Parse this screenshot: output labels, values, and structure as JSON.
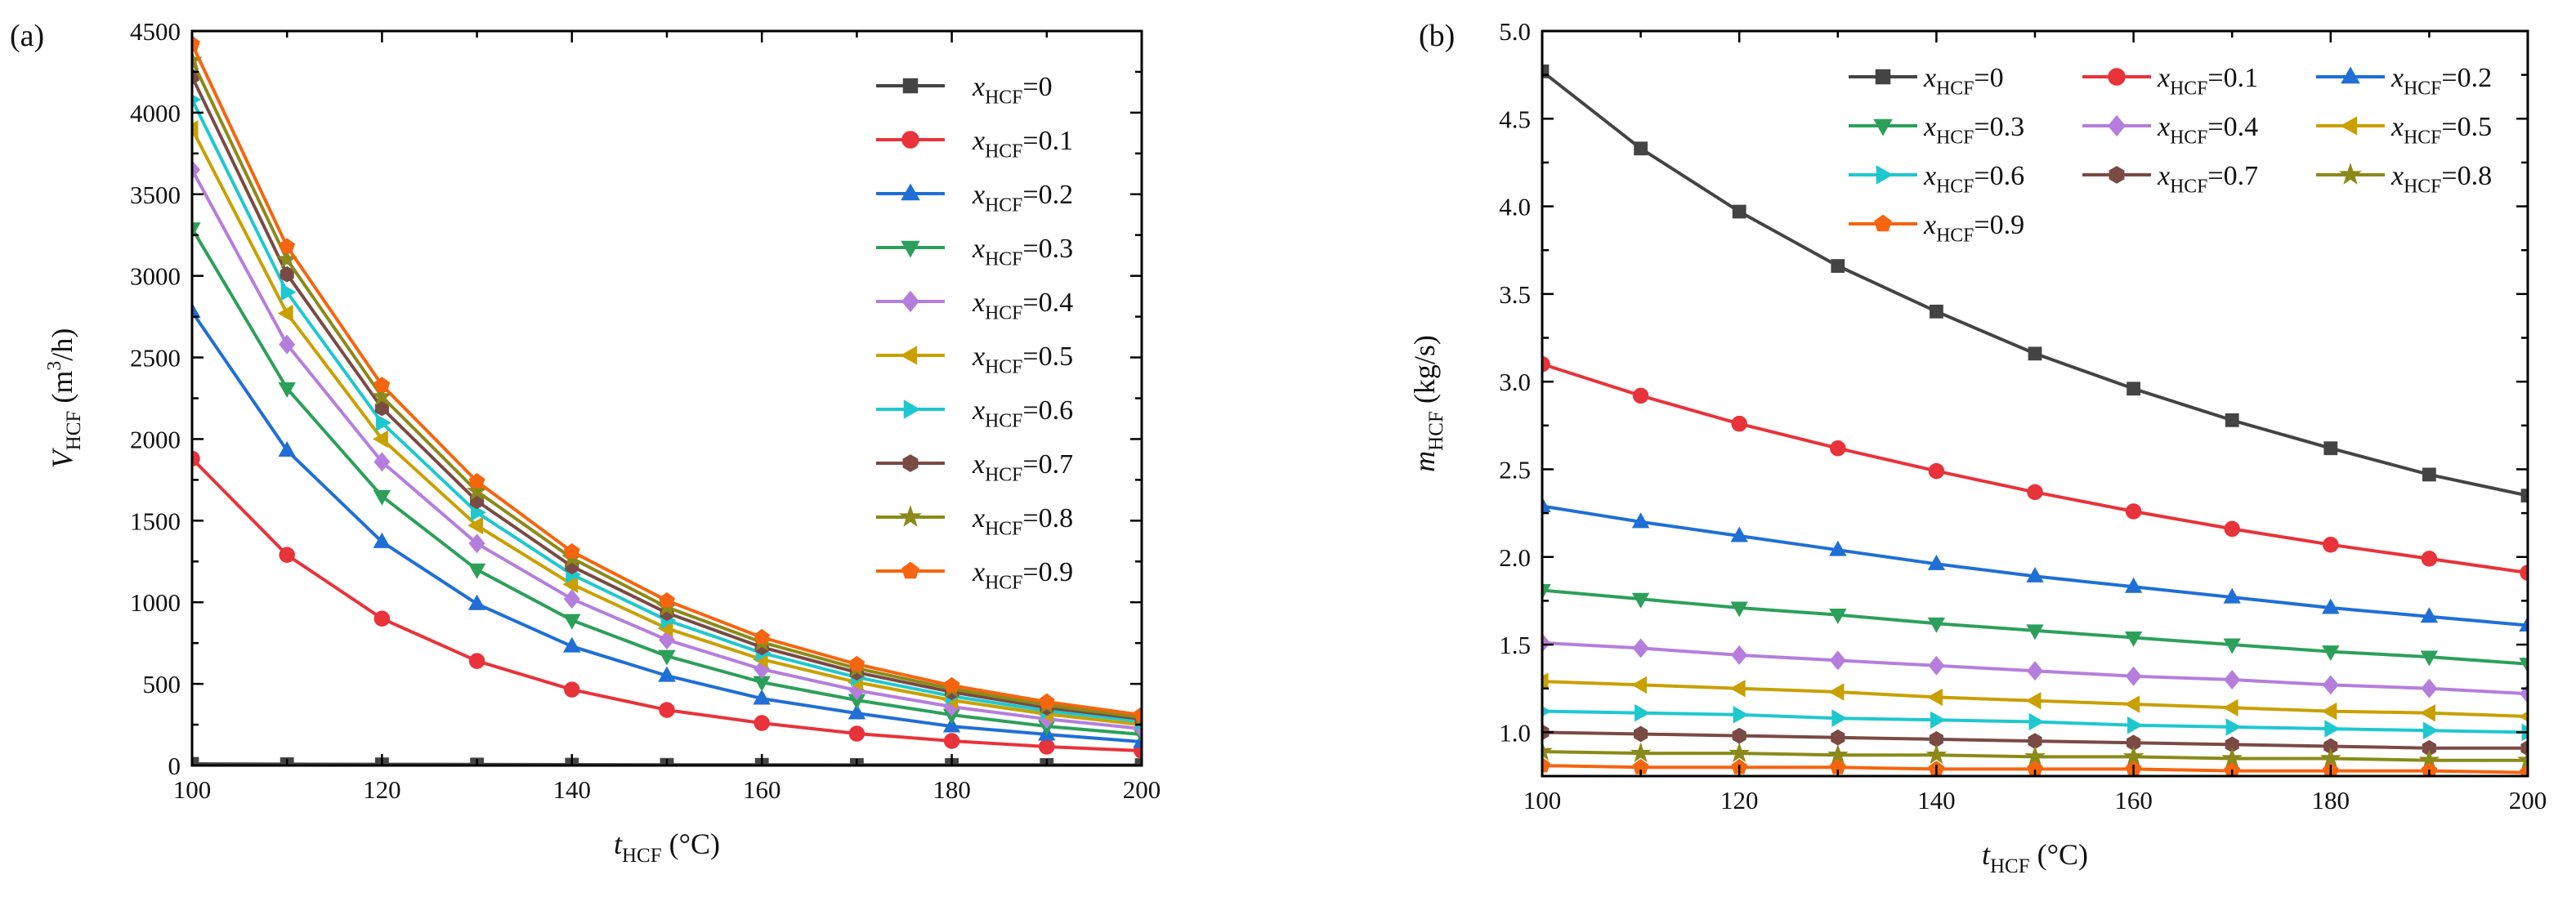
{
  "chart_data": [
    {
      "type": "line",
      "panel_label": "(a)",
      "ylabel": {
        "main": "V",
        "sub": "HCF",
        "unit_pre": "(m",
        "unit_sup": "3",
        "unit_post": "/h)"
      },
      "xlabel": {
        "main": "t",
        "sub": "HCF",
        "unit": "(°C)"
      },
      "xlim": [
        100,
        200
      ],
      "ylim": [
        0,
        4500
      ],
      "xticks": [
        100,
        120,
        140,
        160,
        180,
        200
      ],
      "yticks": [
        0,
        500,
        1000,
        1500,
        2000,
        2500,
        3000,
        3500,
        4000,
        4500
      ],
      "ytick_labels": [
        "0",
        "500",
        "1000",
        "1500",
        "2000",
        "2500",
        "3000",
        "3500",
        "4000",
        "4500"
      ],
      "legend_position": "top-right",
      "x": [
        100,
        110,
        120,
        130,
        140,
        150,
        160,
        170,
        180,
        190,
        200
      ],
      "series": [
        {
          "name": "x_HCF=0",
          "label": {
            "sym": "x",
            "sub": "HCF",
            "val": "=0"
          },
          "color": "#444444",
          "marker": "square",
          "values": [
            10,
            8,
            7,
            6,
            5,
            4,
            4,
            3,
            3,
            3,
            2
          ]
        },
        {
          "name": "x_HCF=0.1",
          "label": {
            "sym": "x",
            "sub": "HCF",
            "val": "=0.1"
          },
          "color": "#e8333a",
          "marker": "circle",
          "values": [
            1880,
            1290,
            900,
            640,
            465,
            340,
            260,
            195,
            150,
            115,
            90
          ]
        },
        {
          "name": "x_HCF=0.2",
          "label": {
            "sym": "x",
            "sub": "HCF",
            "val": "=0.2"
          },
          "color": "#1f6fd6",
          "marker": "triangle-up",
          "values": [
            2780,
            1930,
            1370,
            990,
            730,
            550,
            410,
            320,
            240,
            190,
            145
          ]
        },
        {
          "name": "x_HCF=0.3",
          "label": {
            "sym": "x",
            "sub": "HCF",
            "val": "=0.3"
          },
          "color": "#2ca05a",
          "marker": "triangle-down",
          "values": [
            3290,
            2310,
            1650,
            1200,
            890,
            670,
            510,
            400,
            310,
            240,
            190
          ]
        },
        {
          "name": "x_HCF=0.4",
          "label": {
            "sym": "x",
            "sub": "HCF",
            "val": "=0.4"
          },
          "color": "#b57edc",
          "marker": "diamond",
          "values": [
            3650,
            2580,
            1860,
            1360,
            1020,
            770,
            590,
            460,
            360,
            285,
            225
          ]
        },
        {
          "name": "x_HCF=0.5",
          "label": {
            "sym": "x",
            "sub": "HCF",
            "val": "=0.5"
          },
          "color": "#c9a000",
          "marker": "triangle-left",
          "values": [
            3900,
            2770,
            2000,
            1470,
            1110,
            840,
            650,
            510,
            400,
            315,
            250
          ]
        },
        {
          "name": "x_HCF=0.6",
          "label": {
            "sym": "x",
            "sub": "HCF",
            "val": "=0.6"
          },
          "color": "#1ec8cf",
          "marker": "triangle-right",
          "values": [
            4080,
            2900,
            2100,
            1550,
            1170,
            890,
            690,
            540,
            425,
            335,
            270
          ]
        },
        {
          "name": "x_HCF=0.7",
          "label": {
            "sym": "x",
            "sub": "HCF",
            "val": "=0.7"
          },
          "color": "#7a4a45",
          "marker": "hexagon",
          "values": [
            4220,
            3010,
            2190,
            1620,
            1220,
            935,
            725,
            570,
            450,
            355,
            285
          ]
        },
        {
          "name": "x_HCF=0.8",
          "label": {
            "sym": "x",
            "sub": "HCF",
            "val": "=0.8"
          },
          "color": "#8a8a1a",
          "marker": "star",
          "values": [
            4320,
            3100,
            2260,
            1680,
            1270,
            970,
            755,
            595,
            470,
            370,
            295
          ]
        },
        {
          "name": "x_HCF=0.9",
          "label": {
            "sym": "x",
            "sub": "HCF",
            "val": "=0.9"
          },
          "color": "#f5650f",
          "marker": "pentagon",
          "values": [
            4420,
            3180,
            2330,
            1740,
            1310,
            1010,
            785,
            620,
            490,
            390,
            310
          ]
        }
      ]
    },
    {
      "type": "line",
      "panel_label": "(b)",
      "ylabel": {
        "main": "m",
        "sub": "HCF",
        "unit": "(kg/s)"
      },
      "xlabel": {
        "main": "t",
        "sub": "HCF",
        "unit": "(°C)"
      },
      "xlim": [
        100,
        200
      ],
      "ylim": [
        0.75,
        5.0
      ],
      "xticks": [
        100,
        120,
        140,
        160,
        180,
        200
      ],
      "yticks": [
        1.0,
        1.5,
        2.0,
        2.5,
        3.0,
        3.5,
        4.0,
        4.5,
        5.0
      ],
      "ytick_labels": [
        "1.0",
        "1.5",
        "2.0",
        "2.5",
        "3.0",
        "3.5",
        "4.0",
        "4.5",
        "5.0"
      ],
      "legend_position": "top-right",
      "legend_columns": 3,
      "x": [
        100,
        110,
        120,
        130,
        140,
        150,
        160,
        170,
        180,
        190,
        200
      ],
      "series": [
        {
          "name": "x_HCF=0",
          "label": {
            "sym": "x",
            "sub": "HCF",
            "val": "=0"
          },
          "color": "#444444",
          "marker": "square",
          "values": [
            4.77,
            4.33,
            3.97,
            3.66,
            3.4,
            3.16,
            2.96,
            2.78,
            2.62,
            2.47,
            2.35
          ]
        },
        {
          "name": "x_HCF=0.1",
          "label": {
            "sym": "x",
            "sub": "HCF",
            "val": "=0.1"
          },
          "color": "#e8333a",
          "marker": "circle",
          "values": [
            3.1,
            2.92,
            2.76,
            2.62,
            2.49,
            2.37,
            2.26,
            2.16,
            2.07,
            1.99,
            1.91
          ]
        },
        {
          "name": "x_HCF=0.2",
          "label": {
            "sym": "x",
            "sub": "HCF",
            "val": "=0.2"
          },
          "color": "#1f6fd6",
          "marker": "triangle-up",
          "values": [
            2.29,
            2.2,
            2.12,
            2.04,
            1.96,
            1.89,
            1.83,
            1.77,
            1.71,
            1.66,
            1.61
          ]
        },
        {
          "name": "x_HCF=0.3",
          "label": {
            "sym": "x",
            "sub": "HCF",
            "val": "=0.3"
          },
          "color": "#2ca05a",
          "marker": "triangle-down",
          "values": [
            1.81,
            1.76,
            1.71,
            1.67,
            1.62,
            1.58,
            1.54,
            1.5,
            1.46,
            1.43,
            1.39
          ]
        },
        {
          "name": "x_HCF=0.4",
          "label": {
            "sym": "x",
            "sub": "HCF",
            "val": "=0.4"
          },
          "color": "#b57edc",
          "marker": "diamond",
          "values": [
            1.51,
            1.48,
            1.44,
            1.41,
            1.38,
            1.35,
            1.32,
            1.3,
            1.27,
            1.25,
            1.22
          ]
        },
        {
          "name": "x_HCF=0.5",
          "label": {
            "sym": "x",
            "sub": "HCF",
            "val": "=0.5"
          },
          "color": "#c9a000",
          "marker": "triangle-left",
          "values": [
            1.29,
            1.27,
            1.25,
            1.23,
            1.2,
            1.18,
            1.16,
            1.14,
            1.12,
            1.11,
            1.09
          ]
        },
        {
          "name": "x_HCF=0.6",
          "label": {
            "sym": "x",
            "sub": "HCF",
            "val": "=0.6"
          },
          "color": "#1ec8cf",
          "marker": "triangle-right",
          "values": [
            1.12,
            1.11,
            1.1,
            1.08,
            1.07,
            1.06,
            1.04,
            1.03,
            1.02,
            1.01,
            1.0
          ]
        },
        {
          "name": "x_HCF=0.7",
          "label": {
            "sym": "x",
            "sub": "HCF",
            "val": "=0.7"
          },
          "color": "#7a4a45",
          "marker": "hexagon",
          "values": [
            1.0,
            0.99,
            0.98,
            0.97,
            0.96,
            0.95,
            0.94,
            0.93,
            0.92,
            0.91,
            0.91
          ]
        },
        {
          "name": "x_HCF=0.8",
          "label": {
            "sym": "x",
            "sub": "HCF",
            "val": "=0.8"
          },
          "color": "#8a8a1a",
          "marker": "star",
          "values": [
            0.89,
            0.88,
            0.88,
            0.87,
            0.87,
            0.86,
            0.86,
            0.85,
            0.85,
            0.84,
            0.84
          ]
        },
        {
          "name": "x_HCF=0.9",
          "label": {
            "sym": "x",
            "sub": "HCF",
            "val": "=0.9"
          },
          "color": "#f5650f",
          "marker": "pentagon",
          "values": [
            0.81,
            0.8,
            0.8,
            0.8,
            0.79,
            0.79,
            0.79,
            0.78,
            0.78,
            0.78,
            0.77
          ]
        }
      ]
    }
  ]
}
